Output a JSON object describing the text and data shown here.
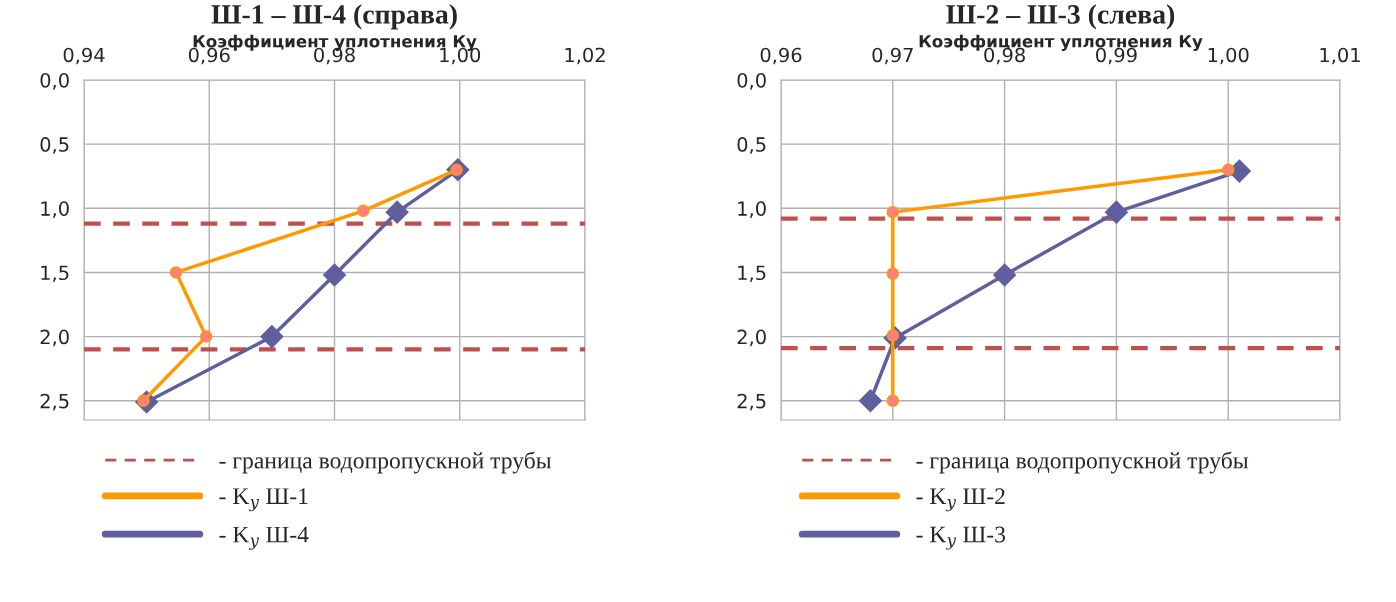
{
  "chart_data": [
    {
      "type": "line",
      "title": "Ш-1 – Ш-4 (справа)",
      "xlabel": "Коэффициент уплотнения Ку",
      "xlim": [
        0.94,
        1.02
      ],
      "xticks": [
        {
          "value": 0.94,
          "label": "0,94"
        },
        {
          "value": 0.96,
          "label": "0,96"
        },
        {
          "value": 0.98,
          "label": "0,98"
        },
        {
          "value": 1.0,
          "label": "1,00"
        },
        {
          "value": 1.02,
          "label": "1,02"
        }
      ],
      "ylim": [
        2.65,
        0
      ],
      "yticks": [
        {
          "value": 0,
          "label": "0,0"
        },
        {
          "value": 0.5,
          "label": "0,5"
        },
        {
          "value": 1.0,
          "label": "1,0"
        },
        {
          "value": 1.5,
          "label": "1,5"
        },
        {
          "value": 2.0,
          "label": "2,0"
        },
        {
          "value": 2.5,
          "label": "2,5"
        }
      ],
      "grid": true,
      "legend": "bottom",
      "ref_lines": [
        {
          "axis": "y",
          "value": 1.12,
          "label": "- граница водопропускной трубы",
          "color": "#c0504d",
          "line_style": "dashed"
        },
        {
          "axis": "y",
          "value": 2.1,
          "color": "#c0504d",
          "line_style": "dashed"
        }
      ],
      "series": [
        {
          "name": "- K$_{y}$ Ш-1",
          "color": "#ff9900",
          "marker": "circle",
          "x": [
            0.9995,
            0.9846,
            0.9547,
            0.9595,
            0.9495
          ],
          "values": [
            0.7,
            1.02,
            1.5,
            2.0,
            2.5
          ]
        },
        {
          "name": "- K$_{y}$ Ш-4",
          "color": "#5f5f9f",
          "marker": "diamond",
          "x": [
            0.9997,
            0.99,
            0.98,
            0.97,
            0.95
          ],
          "values": [
            0.7,
            1.03,
            1.52,
            2.0,
            2.51
          ]
        }
      ]
    },
    {
      "type": "line",
      "title": "Ш-2 – Ш-3 (слева)",
      "xlabel": "Коэффициент уплотнения Ку",
      "xlim": [
        0.96,
        1.01
      ],
      "xticks": [
        {
          "value": 0.96,
          "label": "0,96"
        },
        {
          "value": 0.97,
          "label": "0,97"
        },
        {
          "value": 0.98,
          "label": "0,98"
        },
        {
          "value": 0.99,
          "label": "0,99"
        },
        {
          "value": 1.0,
          "label": "1,00"
        },
        {
          "value": 1.01,
          "label": "1,01"
        }
      ],
      "ylim": [
        2.65,
        0
      ],
      "yticks": [
        {
          "value": 0,
          "label": "0,0"
        },
        {
          "value": 0.5,
          "label": "0,5"
        },
        {
          "value": 1.0,
          "label": "1,0"
        },
        {
          "value": 1.5,
          "label": "1,5"
        },
        {
          "value": 2.0,
          "label": "2,0"
        },
        {
          "value": 2.5,
          "label": "2,5"
        }
      ],
      "grid": true,
      "legend": "bottom",
      "ref_lines": [
        {
          "axis": "y",
          "value": 1.08,
          "label": "- граница водопропускной трубы",
          "color": "#c0504d",
          "line_style": "dashed"
        },
        {
          "axis": "y",
          "value": 2.09,
          "color": "#c0504d",
          "line_style": "dashed"
        }
      ],
      "series": [
        {
          "name": "- K$_{y}$ Ш-2",
          "color": "#ff9900",
          "marker": "circle",
          "x": [
            1.0,
            0.97,
            0.97,
            0.97,
            0.97
          ],
          "values": [
            0.7,
            1.03,
            1.51,
            1.99,
            2.5
          ]
        },
        {
          "name": "- K$_{y}$ Ш-3",
          "color": "#5f5f9f",
          "marker": "diamond",
          "x": [
            1.001,
            0.99,
            0.98,
            0.9702,
            0.968
          ],
          "values": [
            0.71,
            1.03,
            1.52,
            2.01,
            2.5
          ]
        }
      ]
    }
  ]
}
